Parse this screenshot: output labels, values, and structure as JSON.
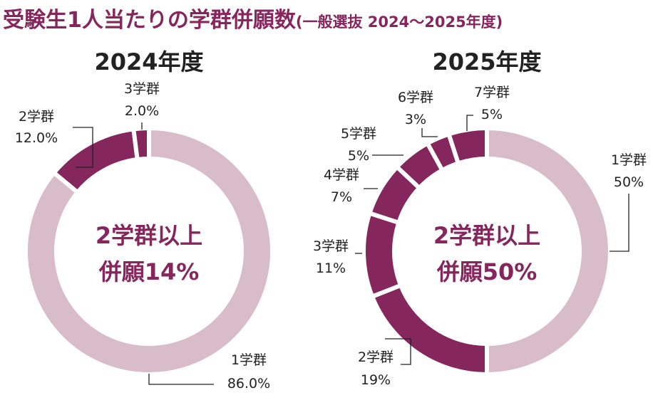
{
  "title": {
    "main": "受験生1人当たりの学群併願数",
    "sub": "(一般選抜 2024～2025年度)"
  },
  "colors": {
    "dark": "#85265d",
    "light": "#d8bcc8",
    "title": "#85265d",
    "text": "#222222",
    "leader": "#222222"
  },
  "chart_data": [
    {
      "type": "pie",
      "variant": "donut",
      "title": "2024年度",
      "center_text": [
        "2学群以上",
        "併願14%"
      ],
      "categories": [
        "1学群",
        "2学群",
        "3学群"
      ],
      "values": [
        86.0,
        12.0,
        2.0
      ],
      "value_labels": [
        "86.0%",
        "12.0%",
        "2.0%"
      ],
      "units": "%"
    },
    {
      "type": "pie",
      "variant": "donut",
      "title": "2025年度",
      "center_text": [
        "2学群以上",
        "併願50%"
      ],
      "categories": [
        "1学群",
        "2学群",
        "3学群",
        "4学群",
        "5学群",
        "6学群",
        "7学群"
      ],
      "values": [
        50,
        19,
        11,
        7,
        5,
        3,
        5
      ],
      "value_labels": [
        "50%",
        "19%",
        "11%",
        "7%",
        "5%",
        "3%",
        "5%"
      ],
      "units": "%"
    }
  ]
}
